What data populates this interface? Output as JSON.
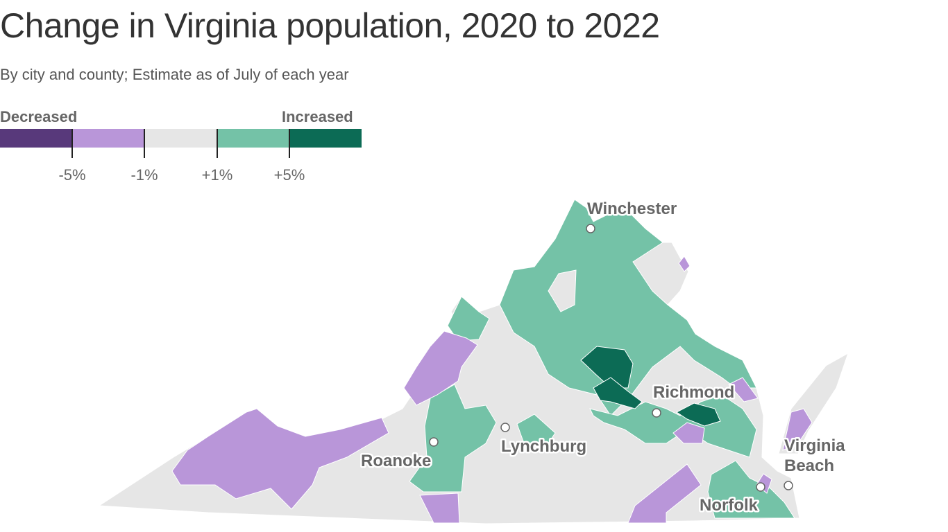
{
  "title": "Change in Virginia population, 2020 to 2022",
  "subtitle": "By city and county; Estimate as of July of each year",
  "legend": {
    "left_label": "Decreased",
    "right_label": "Increased",
    "ticks": [
      "-5%",
      "-1%",
      "+1%",
      "+5%"
    ],
    "bins": [
      {
        "range": "< -5%",
        "color": "#58397b"
      },
      {
        "range": "-5% to -1%",
        "color": "#b996d9"
      },
      {
        "range": "-1% to +1%",
        "color": "#e6e6e6"
      },
      {
        "range": "+1% to +5%",
        "color": "#74c2a7"
      },
      {
        "range": "> +5%",
        "color": "#0c6b55"
      }
    ]
  },
  "cities": [
    "Winchester",
    "Richmond",
    "Lynchburg",
    "Roanoke",
    "Virginia Beach",
    "Norfolk"
  ],
  "cities_vb": [
    "Virginia",
    "Beach"
  ]
}
